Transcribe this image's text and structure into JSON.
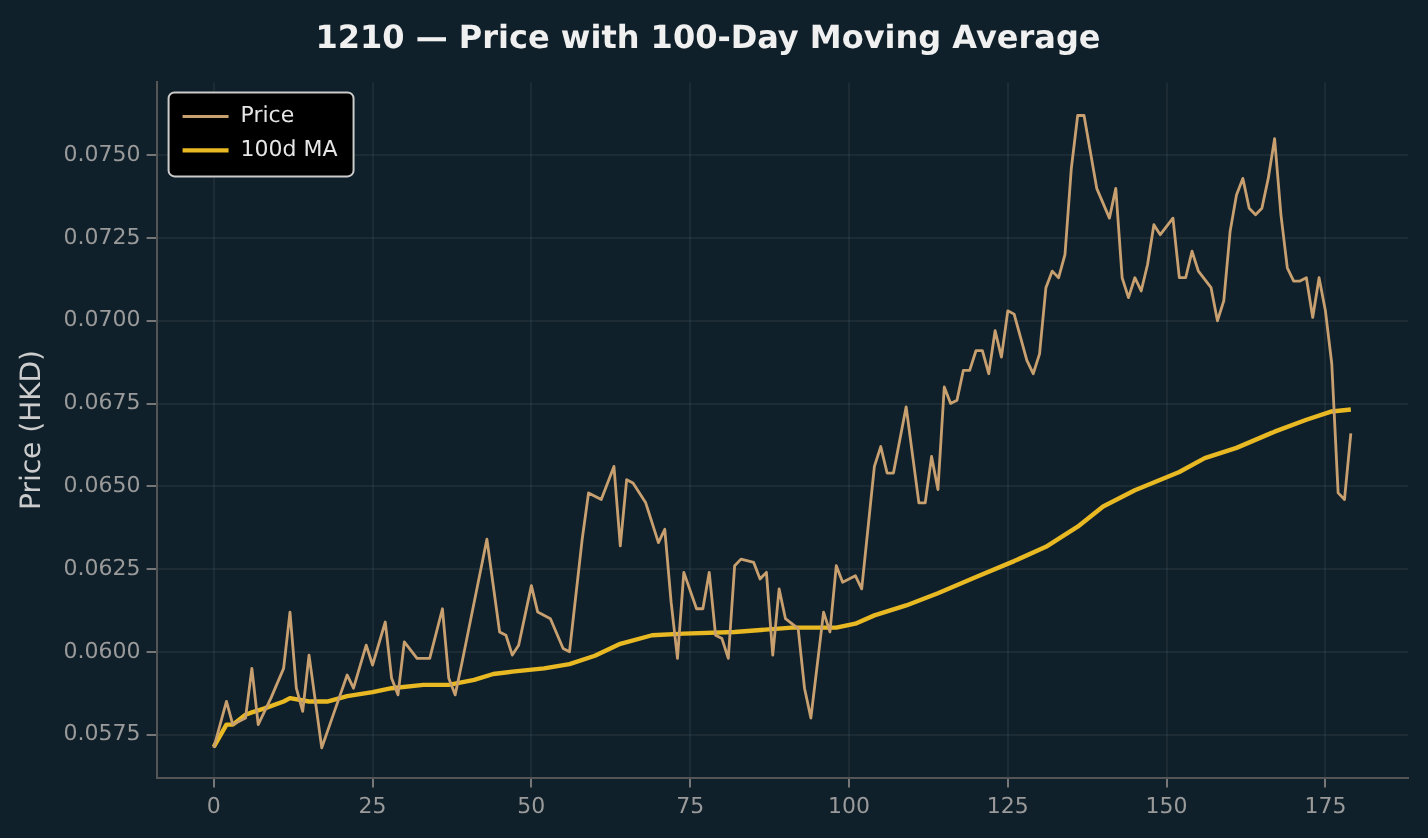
{
  "chart_data": {
    "type": "line",
    "title": "1210 — Price with 100-Day Moving Average",
    "ylabel": "Price (HKD)",
    "xlim": [
      -9,
      188
    ],
    "xticks": [
      0,
      25,
      50,
      75,
      100,
      125,
      150,
      175
    ],
    "ylim": [
      0.0562,
      0.0772
    ],
    "yticks": [
      {
        "value": 0.0575,
        "label": "0.0575"
      },
      {
        "value": 0.06,
        "label": "0.0600"
      },
      {
        "value": 0.0625,
        "label": "0.0625"
      },
      {
        "value": 0.065,
        "label": "0.0650"
      },
      {
        "value": 0.0675,
        "label": "0.0675"
      },
      {
        "value": 0.07,
        "label": "0.0700"
      },
      {
        "value": 0.0725,
        "label": "0.0725"
      },
      {
        "value": 0.075,
        "label": "0.0750"
      }
    ],
    "grid": true,
    "legend": "top left",
    "marker": "none",
    "line_style": "solid",
    "series": [
      {
        "name": "Price",
        "color": "#c8a070",
        "x": [
          0,
          2,
          3,
          5,
          6,
          7,
          9,
          11,
          12,
          13,
          14,
          15,
          17,
          19,
          21,
          22,
          24,
          25,
          27,
          28,
          29,
          30,
          32,
          34,
          36,
          37,
          38,
          39,
          43,
          45,
          46,
          47,
          48,
          50,
          51,
          53,
          55,
          56,
          58,
          59,
          61,
          63,
          64,
          65,
          66,
          68,
          70,
          71,
          72,
          73,
          74,
          76,
          77,
          78,
          79,
          80,
          81,
          82,
          83,
          85,
          86,
          87,
          88,
          89,
          90,
          92,
          93,
          94,
          96,
          97,
          98,
          99,
          101,
          102,
          104,
          105,
          106,
          107,
          109,
          111,
          112,
          113,
          114,
          115,
          116,
          117,
          118,
          119,
          120,
          121,
          122,
          123,
          124,
          125,
          126,
          128,
          129,
          130,
          131,
          132,
          133,
          134,
          135,
          136,
          137,
          139,
          141,
          142,
          143,
          144,
          145,
          146,
          147,
          148,
          149,
          151,
          152,
          153,
          154,
          155,
          157,
          158,
          159,
          160,
          161,
          162,
          163,
          164,
          165,
          166,
          167,
          168,
          169,
          170,
          171,
          172,
          173,
          174,
          175,
          176,
          177,
          178,
          179
        ],
        "values": [
          0.0571,
          0.0585,
          0.0578,
          0.058,
          0.0595,
          0.0578,
          0.0586,
          0.0595,
          0.0612,
          0.0589,
          0.0582,
          0.0599,
          0.0571,
          0.0582,
          0.0593,
          0.0589,
          0.0602,
          0.0596,
          0.0609,
          0.0592,
          0.0587,
          0.0603,
          0.0598,
          0.0598,
          0.0613,
          0.0592,
          0.0587,
          0.0596,
          0.0634,
          0.0606,
          0.0605,
          0.0599,
          0.0602,
          0.062,
          0.0612,
          0.061,
          0.0601,
          0.06,
          0.0634,
          0.0648,
          0.0646,
          0.0656,
          0.0632,
          0.0652,
          0.0651,
          0.0645,
          0.0633,
          0.0637,
          0.0615,
          0.0598,
          0.0624,
          0.0613,
          0.0613,
          0.0624,
          0.0605,
          0.0604,
          0.0598,
          0.0626,
          0.0628,
          0.0627,
          0.0622,
          0.0624,
          0.0599,
          0.0619,
          0.061,
          0.0607,
          0.0589,
          0.058,
          0.0612,
          0.0606,
          0.0626,
          0.0621,
          0.0623,
          0.0619,
          0.0656,
          0.0662,
          0.0654,
          0.0654,
          0.0674,
          0.0645,
          0.0645,
          0.0659,
          0.0649,
          0.068,
          0.0675,
          0.0676,
          0.0685,
          0.0685,
          0.0691,
          0.0691,
          0.0684,
          0.0697,
          0.0689,
          0.0703,
          0.0702,
          0.0688,
          0.0684,
          0.069,
          0.071,
          0.0715,
          0.0713,
          0.072,
          0.0746,
          0.0762,
          0.0762,
          0.074,
          0.0731,
          0.074,
          0.0713,
          0.0707,
          0.0713,
          0.0709,
          0.0717,
          0.0729,
          0.0726,
          0.0731,
          0.0713,
          0.0713,
          0.0721,
          0.0715,
          0.071,
          0.07,
          0.0706,
          0.0727,
          0.0738,
          0.0743,
          0.0734,
          0.0732,
          0.0734,
          0.0743,
          0.0755,
          0.0732,
          0.0716,
          0.0712,
          0.0712,
          0.0713,
          0.0701,
          0.0713,
          0.0703,
          0.0687,
          0.0648,
          0.0646,
          0.0666
        ]
      },
      {
        "name": "100d MA",
        "color": "#e8b923",
        "x": [
          0,
          2,
          3,
          5,
          6,
          8,
          11,
          12,
          15,
          18,
          21,
          25,
          28,
          33,
          37,
          41,
          44,
          47,
          52,
          56,
          60,
          64,
          69,
          74,
          82,
          91,
          98,
          101,
          104,
          109,
          114,
          120,
          126,
          131,
          136,
          140,
          145,
          152,
          156,
          161,
          167,
          172,
          176,
          179
        ],
        "values": [
          0.05713,
          0.0578,
          0.0578,
          0.0581,
          0.05817,
          0.05829,
          0.0585,
          0.0586,
          0.0585,
          0.0585,
          0.05866,
          0.05878,
          0.0589,
          0.059,
          0.059,
          0.05915,
          0.05933,
          0.0594,
          0.0595,
          0.05963,
          0.05988,
          0.06024,
          0.0605,
          0.06055,
          0.0606,
          0.06073,
          0.06073,
          0.06085,
          0.0611,
          0.0614,
          0.06177,
          0.06226,
          0.06274,
          0.06317,
          0.06378,
          0.06439,
          0.06488,
          0.06543,
          0.06585,
          0.06616,
          0.06665,
          0.06701,
          0.06726,
          0.06732
        ]
      }
    ]
  }
}
